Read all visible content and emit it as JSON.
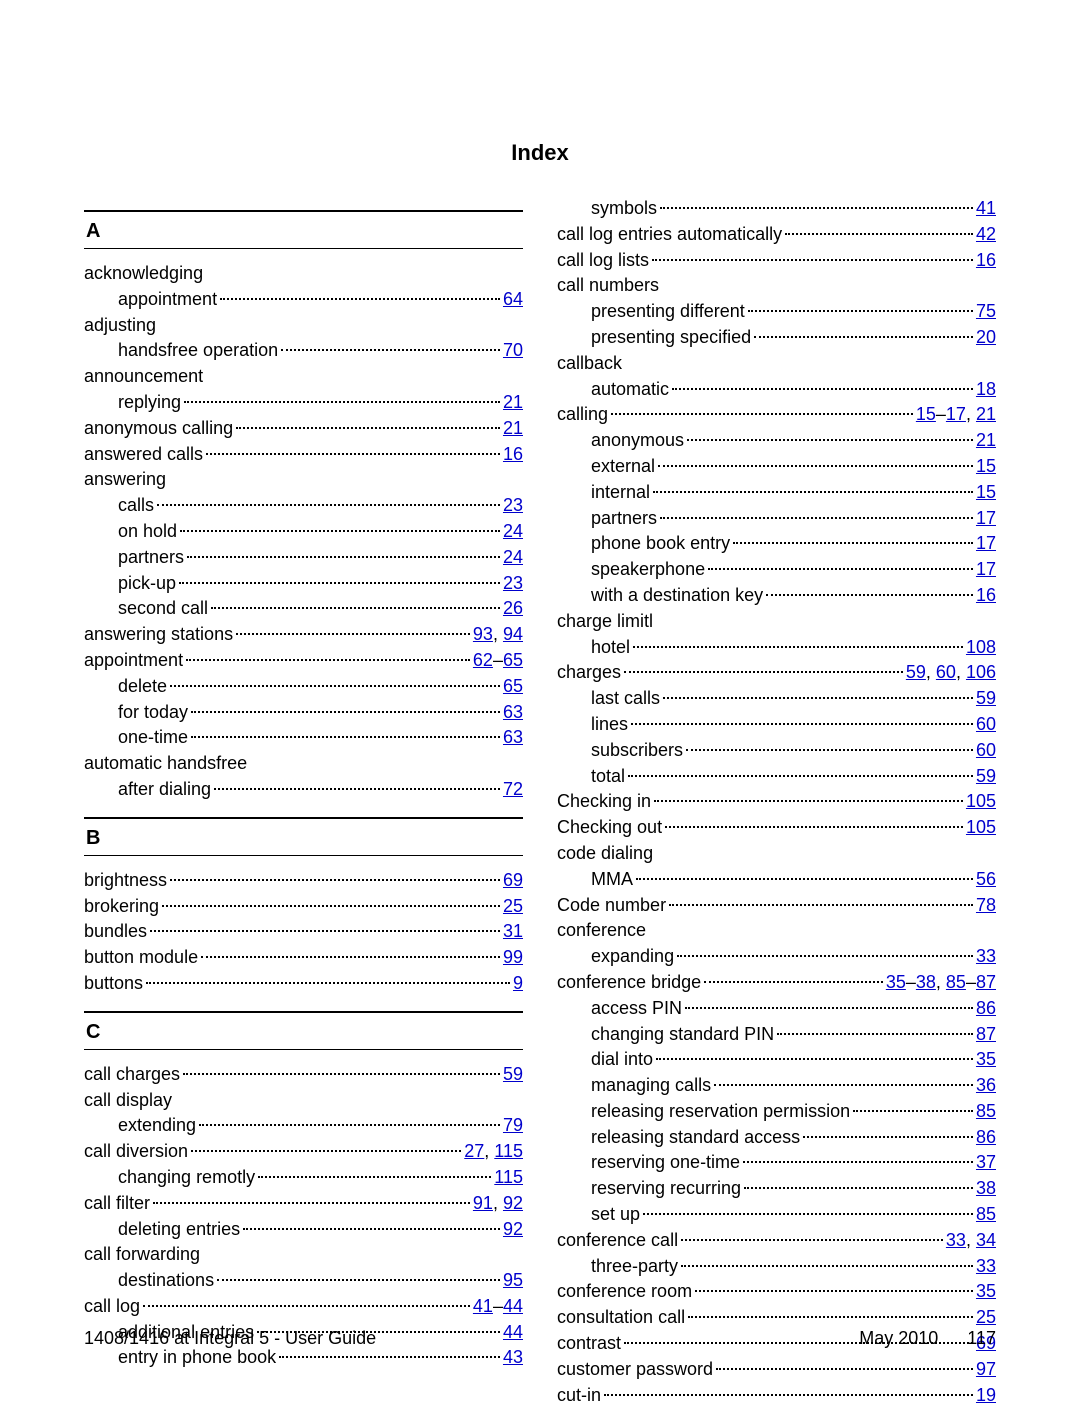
{
  "title": "Index",
  "link_color": "#0000cc",
  "text_color": "#000000",
  "background": "#ffffff",
  "footer": {
    "left": "1408/1416 at Integral 5 - User Guide",
    "date": "May 2010",
    "page": "117"
  },
  "sections_left": [
    {
      "letter": "A",
      "items": [
        {
          "label": "acknowledging",
          "indent": 0,
          "pages": []
        },
        {
          "label": "appointment",
          "indent": 1,
          "pages": [
            "64"
          ]
        },
        {
          "label": "adjusting",
          "indent": 0,
          "pages": []
        },
        {
          "label": "handsfree operation",
          "indent": 1,
          "pages": [
            "70"
          ]
        },
        {
          "label": "announcement",
          "indent": 0,
          "pages": []
        },
        {
          "label": "replying",
          "indent": 1,
          "pages": [
            "21"
          ]
        },
        {
          "label": "anonymous calling",
          "indent": 0,
          "pages": [
            "21"
          ]
        },
        {
          "label": "answered calls",
          "indent": 0,
          "pages": [
            "16"
          ]
        },
        {
          "label": "answering",
          "indent": 0,
          "pages": []
        },
        {
          "label": "calls",
          "indent": 1,
          "pages": [
            "23"
          ]
        },
        {
          "label": "on hold",
          "indent": 1,
          "pages": [
            "24"
          ]
        },
        {
          "label": "partners",
          "indent": 1,
          "pages": [
            "24"
          ]
        },
        {
          "label": "pick-up",
          "indent": 1,
          "pages": [
            "23"
          ]
        },
        {
          "label": "second call",
          "indent": 1,
          "pages": [
            "26"
          ]
        },
        {
          "label": "answering stations",
          "indent": 0,
          "pages": [
            "93",
            ", ",
            "94"
          ]
        },
        {
          "label": "appointment",
          "indent": 0,
          "pages": [
            "62",
            "–",
            "65"
          ]
        },
        {
          "label": "delete",
          "indent": 1,
          "pages": [
            "65"
          ]
        },
        {
          "label": "for today",
          "indent": 1,
          "pages": [
            "63"
          ]
        },
        {
          "label": "one-time",
          "indent": 1,
          "pages": [
            "63"
          ]
        },
        {
          "label": "automatic handsfree",
          "indent": 0,
          "pages": []
        },
        {
          "label": "after dialing",
          "indent": 1,
          "pages": [
            "72"
          ]
        }
      ]
    },
    {
      "letter": "B",
      "items": [
        {
          "label": "brightness",
          "indent": 0,
          "pages": [
            "69"
          ]
        },
        {
          "label": "brokering",
          "indent": 0,
          "pages": [
            "25"
          ]
        },
        {
          "label": "bundles",
          "indent": 0,
          "pages": [
            "31"
          ]
        },
        {
          "label": "button module",
          "indent": 0,
          "pages": [
            "99"
          ]
        },
        {
          "label": "buttons",
          "indent": 0,
          "pages": [
            "9"
          ]
        }
      ]
    },
    {
      "letter": "C",
      "items": [
        {
          "label": "call charges",
          "indent": 0,
          "pages": [
            "59"
          ]
        },
        {
          "label": "call display",
          "indent": 0,
          "pages": []
        },
        {
          "label": "extending",
          "indent": 1,
          "pages": [
            "79"
          ]
        },
        {
          "label": "call diversion",
          "indent": 0,
          "pages": [
            "27",
            ", ",
            "115"
          ]
        },
        {
          "label": "changing remotly",
          "indent": 1,
          "pages": [
            "115"
          ]
        },
        {
          "label": "call filter",
          "indent": 0,
          "pages": [
            "91",
            ", ",
            "92"
          ]
        },
        {
          "label": "deleting entries",
          "indent": 1,
          "pages": [
            "92"
          ]
        },
        {
          "label": "call forwarding",
          "indent": 0,
          "pages": []
        },
        {
          "label": "destinations",
          "indent": 1,
          "pages": [
            "95"
          ]
        },
        {
          "label": "call log",
          "indent": 0,
          "pages": [
            "41",
            "–",
            "44"
          ]
        },
        {
          "label": "additional entries",
          "indent": 1,
          "pages": [
            "44"
          ]
        },
        {
          "label": "entry in phone book",
          "indent": 1,
          "pages": [
            "43"
          ]
        }
      ]
    }
  ],
  "items_right": [
    {
      "label": "symbols",
      "indent": 1,
      "pages": [
        "41"
      ]
    },
    {
      "label": "call log entries automatically",
      "indent": 0,
      "pages": [
        "42"
      ]
    },
    {
      "label": "call log lists",
      "indent": 0,
      "pages": [
        "16"
      ]
    },
    {
      "label": "call numbers",
      "indent": 0,
      "pages": []
    },
    {
      "label": "presenting different",
      "indent": 1,
      "pages": [
        "75"
      ]
    },
    {
      "label": "presenting specified",
      "indent": 1,
      "pages": [
        "20"
      ]
    },
    {
      "label": "callback",
      "indent": 0,
      "pages": []
    },
    {
      "label": "automatic",
      "indent": 1,
      "pages": [
        "18"
      ]
    },
    {
      "label": "calling",
      "indent": 0,
      "pages": [
        "15",
        "–",
        "17",
        ", ",
        "21"
      ]
    },
    {
      "label": "anonymous",
      "indent": 1,
      "pages": [
        "21"
      ]
    },
    {
      "label": "external",
      "indent": 1,
      "pages": [
        "15"
      ]
    },
    {
      "label": "internal",
      "indent": 1,
      "pages": [
        "15"
      ]
    },
    {
      "label": "partners",
      "indent": 1,
      "pages": [
        "17"
      ]
    },
    {
      "label": "phone book entry",
      "indent": 1,
      "pages": [
        "17"
      ]
    },
    {
      "label": "speakerphone",
      "indent": 1,
      "pages": [
        "17"
      ]
    },
    {
      "label": "with a destination key",
      "indent": 1,
      "pages": [
        "16"
      ]
    },
    {
      "label": "charge limitl",
      "indent": 0,
      "pages": []
    },
    {
      "label": "hotel",
      "indent": 1,
      "pages": [
        "108"
      ]
    },
    {
      "label": "charges",
      "indent": 0,
      "pages": [
        "59",
        ", ",
        "60",
        ", ",
        "106"
      ]
    },
    {
      "label": "last calls",
      "indent": 1,
      "pages": [
        "59"
      ]
    },
    {
      "label": "lines",
      "indent": 1,
      "pages": [
        "60"
      ]
    },
    {
      "label": "subscribers",
      "indent": 1,
      "pages": [
        "60"
      ]
    },
    {
      "label": "total",
      "indent": 1,
      "pages": [
        "59"
      ]
    },
    {
      "label": "Checking in",
      "indent": 0,
      "pages": [
        "105"
      ]
    },
    {
      "label": "Checking out",
      "indent": 0,
      "pages": [
        "105"
      ]
    },
    {
      "label": "code dialing",
      "indent": 0,
      "pages": []
    },
    {
      "label": "MMA",
      "indent": 1,
      "pages": [
        "56"
      ]
    },
    {
      "label": "Code number",
      "indent": 0,
      "pages": [
        "78"
      ]
    },
    {
      "label": "conference",
      "indent": 0,
      "pages": []
    },
    {
      "label": "expanding",
      "indent": 1,
      "pages": [
        "33"
      ]
    },
    {
      "label": "conference bridge",
      "indent": 0,
      "pages": [
        "35",
        "–",
        "38",
        ", ",
        "85",
        "–",
        "87"
      ]
    },
    {
      "label": "access PIN",
      "indent": 1,
      "pages": [
        "86"
      ]
    },
    {
      "label": "changing standard PIN",
      "indent": 1,
      "pages": [
        "87"
      ]
    },
    {
      "label": "dial into",
      "indent": 1,
      "pages": [
        "35"
      ]
    },
    {
      "label": "managing calls",
      "indent": 1,
      "pages": [
        "36"
      ]
    },
    {
      "label": "releasing reservation permission",
      "indent": 1,
      "pages": [
        "85"
      ]
    },
    {
      "label": "releasing standard access",
      "indent": 1,
      "pages": [
        "86"
      ]
    },
    {
      "label": "reserving one-time",
      "indent": 1,
      "pages": [
        "37"
      ]
    },
    {
      "label": "reserving recurring",
      "indent": 1,
      "pages": [
        "38"
      ]
    },
    {
      "label": "set up",
      "indent": 1,
      "pages": [
        "85"
      ]
    },
    {
      "label": "conference call",
      "indent": 0,
      "pages": [
        "33",
        ", ",
        "34"
      ]
    },
    {
      "label": "three-party",
      "indent": 1,
      "pages": [
        "33"
      ]
    },
    {
      "label": "conference room",
      "indent": 0,
      "pages": [
        "35"
      ]
    },
    {
      "label": "consultation call",
      "indent": 0,
      "pages": [
        "25"
      ]
    },
    {
      "label": "contrast",
      "indent": 0,
      "pages": [
        "69"
      ]
    },
    {
      "label": "customer password",
      "indent": 0,
      "pages": [
        "97"
      ]
    },
    {
      "label": "cut-in",
      "indent": 0,
      "pages": [
        "19"
      ]
    }
  ]
}
